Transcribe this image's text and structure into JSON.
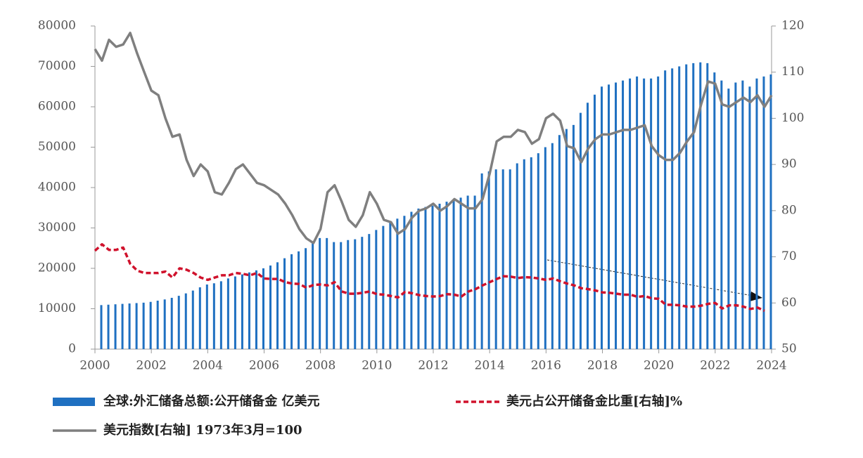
{
  "chart_data": {
    "type": "bar-line",
    "x": [
      2000,
      2000.25,
      2000.5,
      2000.75,
      2001,
      2001.25,
      2001.5,
      2001.75,
      2002,
      2002.25,
      2002.5,
      2002.75,
      2003,
      2003.25,
      2003.5,
      2003.75,
      2004,
      2004.25,
      2004.5,
      2004.75,
      2005,
      2005.25,
      2005.5,
      2005.75,
      2006,
      2006.25,
      2006.5,
      2006.75,
      2007,
      2007.25,
      2007.5,
      2007.75,
      2008,
      2008.25,
      2008.5,
      2008.75,
      2009,
      2009.25,
      2009.5,
      2009.75,
      2010,
      2010.25,
      2010.5,
      2010.75,
      2011,
      2011.25,
      2011.5,
      2011.75,
      2012,
      2012.25,
      2012.5,
      2012.75,
      2013,
      2013.25,
      2013.5,
      2013.75,
      2014,
      2014.25,
      2014.5,
      2014.75,
      2015,
      2015.25,
      2015.5,
      2015.75,
      2016,
      2016.25,
      2016.5,
      2016.75,
      2017,
      2017.25,
      2017.5,
      2017.75,
      2018,
      2018.25,
      2018.5,
      2018.75,
      2019,
      2019.25,
      2019.5,
      2019.75,
      2020,
      2020.25,
      2020.5,
      2020.75,
      2021,
      2021.25,
      2021.5,
      2021.75,
      2022,
      2022.25,
      2022.5,
      2022.75,
      2023,
      2023.25,
      2023.5,
      2023.75,
      2024
    ],
    "xlim": [
      2000,
      2024
    ],
    "xticks": [
      2000,
      2002,
      2004,
      2006,
      2008,
      2010,
      2012,
      2014,
      2016,
      2018,
      2020,
      2022,
      2024
    ],
    "ylim": [
      0,
      80000
    ],
    "yticks": [
      0,
      10000,
      20000,
      30000,
      40000,
      50000,
      60000,
      70000,
      80000
    ],
    "y2lim": [
      50,
      120
    ],
    "y2ticks": [
      50,
      60,
      70,
      80,
      90,
      100,
      110,
      120
    ],
    "series": [
      {
        "name": "全球:外汇储备总额:公开储备金 亿美元",
        "type": "bar",
        "color": "#1f70c1",
        "values": [
          10900,
          11000,
          11100,
          11200,
          11300,
          11400,
          11500,
          11700,
          12000,
          12300,
          12700,
          13200,
          13800,
          14500,
          15300,
          16000,
          16300,
          16800,
          17500,
          18000,
          18500,
          19000,
          19500,
          20000,
          20700,
          21500,
          22500,
          23500,
          24200,
          25000,
          26200,
          27500,
          27500,
          26500,
          26500,
          27000,
          27200,
          27800,
          28500,
          29500,
          30500,
          31500,
          32300,
          33000,
          34000,
          34800,
          35200,
          35500,
          36000,
          36500,
          37000,
          37500,
          38000,
          38000,
          43500,
          44000,
          44500,
          44500,
          44500,
          46000,
          47000,
          47500,
          48500,
          50000,
          51000,
          53000,
          54500,
          55500,
          58500,
          61000,
          63000,
          65000,
          65500,
          66000,
          66500,
          67000,
          67500,
          67000,
          67000,
          67500,
          69000,
          69500,
          70000,
          70500,
          70800,
          71000,
          70800,
          68500,
          66500,
          64500,
          66000,
          66500,
          65000,
          67000,
          67500,
          68000,
          null
        ]
      },
      {
        "name": "美元占公开储备金比重[右轴]%",
        "type": "line",
        "dashed": true,
        "axis": "y2",
        "color": "#d0122c",
        "values": [
          71.3,
          72.7,
          71.5,
          71.5,
          72,
          68.5,
          67,
          66.5,
          66.5,
          66.5,
          66.8,
          65.5,
          67.5,
          67.2,
          66.5,
          65.5,
          65,
          65.5,
          66,
          66,
          66.5,
          66.3,
          66,
          66.5,
          65.3,
          65.2,
          65.2,
          64.5,
          64.2,
          64.1,
          63.3,
          63.9,
          64,
          63.8,
          64.5,
          62.5,
          62,
          62,
          62.2,
          62.5,
          61.9,
          61.8,
          61.5,
          61.2,
          62.4,
          62.1,
          61.7,
          61.5,
          61.4,
          61.5,
          61.9,
          61.8,
          61.4,
          62.5,
          63,
          63.8,
          64.5,
          65.2,
          65.8,
          65.7,
          65.4,
          65.6,
          65.5,
          65.3,
          65,
          65.3,
          64.7,
          64.2,
          63.8,
          63.2,
          63,
          62.7,
          62.3,
          62.2,
          62,
          61.8,
          61.8,
          61.3,
          61.5,
          61,
          60.9,
          59.6,
          59.6,
          59.5,
          59.2,
          59.2,
          59.4,
          59.8,
          60,
          58.8,
          59.5,
          59.5,
          59.2,
          58.7,
          59,
          58.3,
          null
        ]
      },
      {
        "name": "美元指数[右轴] 1973年3月=100",
        "type": "line",
        "axis": "y2",
        "color": "#7f7f7f",
        "values": [
          115,
          112.5,
          117,
          115.5,
          116,
          118.5,
          114,
          110,
          106,
          105,
          100,
          96,
          96.5,
          91,
          87.5,
          90,
          88.5,
          84,
          83.5,
          86,
          89,
          90,
          88,
          86,
          85.5,
          84.5,
          83.5,
          81.5,
          79,
          76,
          74,
          73,
          76,
          84,
          85.5,
          82,
          78,
          76.5,
          79,
          84,
          81.5,
          78,
          77.5,
          75,
          76,
          78.5,
          80,
          80.5,
          81.5,
          80,
          81,
          82.5,
          81.5,
          80.5,
          80.5,
          82.5,
          88,
          95,
          96,
          96,
          97.5,
          97,
          94.5,
          95.5,
          100,
          101,
          99.5,
          94,
          93.5,
          90.5,
          93.5,
          95.5,
          96.5,
          96.5,
          97,
          97.5,
          97.5,
          98,
          98.5,
          94,
          92,
          91,
          91,
          92.5,
          95,
          97,
          103,
          108,
          107.5,
          103,
          102.5,
          103.5,
          104.5,
          103.5,
          105,
          102.5,
          105
        ]
      }
    ]
  }
}
